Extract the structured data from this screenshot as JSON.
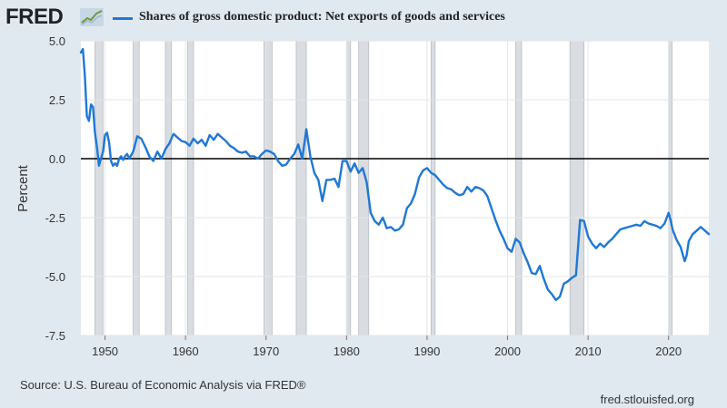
{
  "header": {
    "logo_text": "FRED",
    "logo_icon": "trend-line-icon",
    "legend_color": "#1f77d6"
  },
  "source": "Source: U.S. Bureau of Economic Analysis via FRED®",
  "site": "fred.stlouisfed.org",
  "chart_data": {
    "type": "line",
    "title": "",
    "ylabel": "Percent",
    "xlabel": "",
    "ylim": [
      -7.5,
      5.0
    ],
    "xlim": [
      1947.0,
      2025.0
    ],
    "y_ticks": [
      5.0,
      2.5,
      0.0,
      -2.5,
      -5.0,
      -7.5
    ],
    "y_tick_labels": [
      "5.0",
      "2.5",
      "0.0",
      "-2.5",
      "-5.0",
      "-7.5"
    ],
    "x_ticks": [
      1950,
      1960,
      1970,
      1980,
      1990,
      2000,
      2010,
      2020
    ],
    "x_tick_labels": [
      "1950",
      "1960",
      "1970",
      "1980",
      "1990",
      "2000",
      "2010",
      "2020"
    ],
    "grid": true,
    "zero_line": true,
    "recessions": [
      [
        1948.75,
        1949.75
      ],
      [
        1953.5,
        1954.25
      ],
      [
        1957.5,
        1958.25
      ],
      [
        1960.25,
        1961.0
      ],
      [
        1969.75,
        1970.75
      ],
      [
        1973.75,
        1975.0
      ],
      [
        1980.0,
        1980.5
      ],
      [
        1981.5,
        1982.75
      ],
      [
        1990.5,
        1991.0
      ],
      [
        2001.0,
        2001.75
      ],
      [
        2007.75,
        2009.5
      ],
      [
        2020.0,
        2020.25
      ]
    ],
    "series": [
      {
        "name": "Shares of gross domestic product: Net exports of goods and services",
        "color": "#1f77d6",
        "x": [
          1947.0,
          1947.25,
          1947.5,
          1947.75,
          1948.0,
          1948.25,
          1948.5,
          1948.75,
          1949.0,
          1949.25,
          1949.5,
          1949.75,
          1950.0,
          1950.25,
          1950.5,
          1950.75,
          1951.0,
          1951.25,
          1951.5,
          1951.75,
          1952.0,
          1952.25,
          1952.5,
          1952.75,
          1953.0,
          1953.5,
          1954.0,
          1954.5,
          1955.0,
          1955.5,
          1956.0,
          1956.5,
          1957.0,
          1957.5,
          1958.0,
          1958.5,
          1959.0,
          1959.5,
          1960.0,
          1960.5,
          1961.0,
          1961.5,
          1962.0,
          1962.5,
          1963.0,
          1963.5,
          1964.0,
          1964.5,
          1965.0,
          1965.5,
          1966.0,
          1966.5,
          1967.0,
          1967.5,
          1968.0,
          1968.5,
          1969.0,
          1969.5,
          1970.0,
          1970.5,
          1971.0,
          1971.5,
          1972.0,
          1972.5,
          1973.0,
          1973.5,
          1974.0,
          1974.5,
          1975.0,
          1975.5,
          1976.0,
          1976.5,
          1977.0,
          1977.5,
          1978.0,
          1978.5,
          1979.0,
          1979.5,
          1980.0,
          1980.5,
          1981.0,
          1981.5,
          1982.0,
          1982.5,
          1983.0,
          1983.5,
          1984.0,
          1984.5,
          1985.0,
          1985.5,
          1986.0,
          1986.5,
          1987.0,
          1987.5,
          1988.0,
          1988.5,
          1989.0,
          1989.5,
          1990.0,
          1990.5,
          1991.0,
          1991.5,
          1992.0,
          1992.5,
          1993.0,
          1993.5,
          1994.0,
          1994.5,
          1995.0,
          1995.5,
          1996.0,
          1996.5,
          1997.0,
          1997.5,
          1998.0,
          1998.5,
          1999.0,
          1999.5,
          2000.0,
          2000.5,
          2001.0,
          2001.5,
          2002.0,
          2002.5,
          2003.0,
          2003.5,
          2004.0,
          2004.5,
          2005.0,
          2005.5,
          2006.0,
          2006.5,
          2007.0,
          2007.5,
          2008.0,
          2008.5,
          2009.0,
          2009.5,
          2010.0,
          2010.5,
          2011.0,
          2011.5,
          2012.0,
          2012.5,
          2013.0,
          2013.5,
          2014.0,
          2014.5,
          2015.0,
          2015.5,
          2016.0,
          2016.5,
          2017.0,
          2017.5,
          2018.0,
          2018.5,
          2019.0,
          2019.5,
          2020.0,
          2020.25,
          2020.5,
          2021.0,
          2021.5,
          2022.0,
          2022.25,
          2022.5,
          2023.0,
          2023.5,
          2024.0,
          2024.5,
          2025.0
        ],
        "values": [
          4.5,
          4.65,
          3.5,
          1.8,
          1.6,
          2.3,
          2.2,
          1.1,
          0.5,
          -0.3,
          0.0,
          0.3,
          1.0,
          1.1,
          0.7,
          -0.1,
          -0.3,
          -0.2,
          -0.3,
          0.0,
          0.1,
          -0.05,
          0.1,
          0.2,
          0.0,
          0.3,
          0.95,
          0.85,
          0.5,
          0.1,
          -0.1,
          0.3,
          0.0,
          0.4,
          0.65,
          1.05,
          0.9,
          0.75,
          0.7,
          0.55,
          0.85,
          0.65,
          0.8,
          0.55,
          1.0,
          0.8,
          1.05,
          0.9,
          0.75,
          0.55,
          0.45,
          0.3,
          0.25,
          0.3,
          0.1,
          0.1,
          0.0,
          0.2,
          0.35,
          0.3,
          0.2,
          -0.1,
          -0.3,
          -0.25,
          0.0,
          0.2,
          0.6,
          0.0,
          1.25,
          0.1,
          -0.6,
          -0.9,
          -1.8,
          -0.9,
          -0.9,
          -0.85,
          -1.2,
          -0.1,
          -0.1,
          -0.55,
          -0.2,
          -0.6,
          -0.4,
          -1.0,
          -2.3,
          -2.65,
          -2.8,
          -2.5,
          -2.95,
          -2.9,
          -3.05,
          -3.0,
          -2.8,
          -2.1,
          -1.9,
          -1.5,
          -0.8,
          -0.5,
          -0.4,
          -0.6,
          -0.7,
          -0.9,
          -1.1,
          -1.25,
          -1.3,
          -1.45,
          -1.55,
          -1.5,
          -1.2,
          -1.4,
          -1.2,
          -1.25,
          -1.35,
          -1.6,
          -2.1,
          -2.6,
          -3.05,
          -3.4,
          -3.8,
          -3.95,
          -3.4,
          -3.55,
          -4.0,
          -4.4,
          -4.85,
          -4.9,
          -4.55,
          -5.1,
          -5.55,
          -5.75,
          -6.0,
          -5.85,
          -5.3,
          -5.2,
          -5.05,
          -4.95,
          -2.6,
          -2.65,
          -3.3,
          -3.6,
          -3.8,
          -3.6,
          -3.75,
          -3.55,
          -3.4,
          -3.2,
          -3.0,
          -2.95,
          -2.9,
          -2.85,
          -2.8,
          -2.85,
          -2.65,
          -2.75,
          -2.8,
          -2.85,
          -2.95,
          -2.75,
          -2.3,
          -2.6,
          -3.0,
          -3.45,
          -3.75,
          -4.35,
          -4.1,
          -3.5,
          -3.2,
          -3.05,
          -2.9,
          -3.05,
          -3.2
        ]
      }
    ]
  }
}
